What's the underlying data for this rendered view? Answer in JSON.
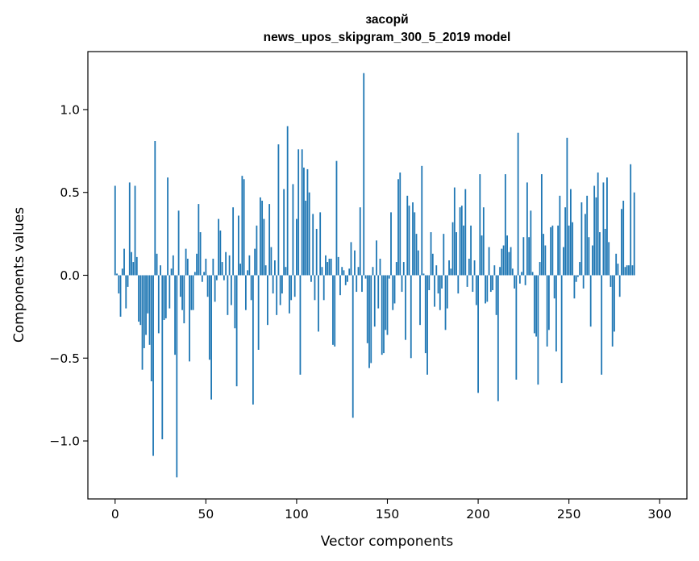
{
  "chart_data": {
    "type": "bar",
    "title": "засорй",
    "subtitle": "news_upos_skipgram_300_5_2019 model",
    "xlabel": "Vector components",
    "ylabel": "Components values",
    "xlim": [
      -15,
      315
    ],
    "ylim": [
      -1.35,
      1.35
    ],
    "xticks": [
      0,
      50,
      100,
      150,
      200,
      250,
      300
    ],
    "xtick_labels": [
      "0",
      "50",
      "100",
      "150",
      "200",
      "250",
      "300"
    ],
    "yticks": [
      1.0,
      0.5,
      0.0,
      -0.5,
      -1.0
    ],
    "ytick_labels": [
      "1.0",
      "0.5",
      "0.0",
      "−0.5",
      "−1.0"
    ],
    "bar_color": "#1f77b4",
    "values": [
      0.54,
      0.01,
      -0.11,
      -0.25,
      0.04,
      0.16,
      -0.2,
      -0.07,
      0.56,
      0.14,
      0.08,
      0.54,
      0.11,
      -0.28,
      -0.3,
      -0.57,
      -0.44,
      -0.36,
      -0.23,
      -0.42,
      -0.64,
      -1.09,
      0.81,
      0.13,
      -0.35,
      0.06,
      -0.99,
      -0.27,
      -0.26,
      0.59,
      -0.2,
      0.04,
      0.12,
      -0.48,
      -1.22,
      0.39,
      -0.13,
      -0.21,
      -0.29,
      0.16,
      0.1,
      -0.52,
      -0.21,
      -0.21,
      0.02,
      0.13,
      0.43,
      0.26,
      -0.04,
      0.02,
      0.1,
      -0.13,
      -0.51,
      -0.75,
      0.1,
      -0.16,
      -0.03,
      0.34,
      0.27,
      0.08,
      -0.03,
      0.14,
      -0.24,
      0.12,
      -0.18,
      0.41,
      -0.32,
      -0.67,
      0.36,
      0.07,
      0.6,
      0.58,
      -0.21,
      0.03,
      0.12,
      -0.15,
      -0.78,
      0.16,
      0.3,
      -0.45,
      0.47,
      0.45,
      0.34,
      0.06,
      -0.3,
      0.43,
      0.17,
      -0.11,
      0.09,
      -0.24,
      0.79,
      -0.18,
      -0.11,
      0.52,
      0.05,
      0.9,
      -0.23,
      -0.15,
      0.55,
      -0.13,
      0.34,
      0.76,
      -0.6,
      0.76,
      0.65,
      0.45,
      0.64,
      0.5,
      -0.04,
      0.37,
      -0.15,
      0.28,
      -0.34,
      0.38,
      0.05,
      -0.15,
      0.12,
      0.08,
      0.1,
      0.1,
      -0.42,
      -0.43,
      0.69,
      0.11,
      -0.12,
      0.05,
      0.03,
      -0.06,
      -0.04,
      0.04,
      0.2,
      -0.86,
      0.15,
      -0.1,
      0.05,
      0.41,
      -0.1,
      1.22,
      -0.02,
      -0.41,
      -0.56,
      -0.53,
      0.05,
      -0.31,
      0.21,
      -0.2,
      0.1,
      -0.48,
      -0.47,
      -0.33,
      -0.36,
      -0.02,
      0.38,
      -0.21,
      -0.17,
      0.08,
      0.58,
      0.62,
      -0.1,
      0.08,
      -0.39,
      0.48,
      0.42,
      -0.5,
      0.44,
      0.38,
      0.25,
      0.15,
      -0.3,
      0.66,
      0.01,
      -0.47,
      -0.6,
      -0.09,
      0.26,
      0.13,
      -0.19,
      0.06,
      -0.11,
      -0.21,
      -0.08,
      0.25,
      -0.33,
      -0.2,
      0.09,
      0.04,
      0.32,
      0.53,
      0.26,
      -0.11,
      0.41,
      0.42,
      0.3,
      0.52,
      -0.07,
      0.1,
      0.3,
      -0.1,
      0.09,
      -0.18,
      -0.71,
      0.61,
      0.24,
      0.41,
      -0.17,
      -0.16,
      0.17,
      -0.1,
      -0.09,
      0.06,
      -0.24,
      -0.76,
      0.05,
      0.16,
      0.18,
      0.61,
      0.24,
      0.14,
      0.17,
      0.04,
      -0.08,
      -0.63,
      0.86,
      -0.05,
      0.02,
      0.23,
      -0.06,
      0.56,
      0.23,
      0.39,
      0.02,
      -0.35,
      -0.37,
      -0.66,
      0.08,
      0.61,
      0.25,
      0.18,
      -0.43,
      -0.33,
      0.29,
      0.3,
      -0.14,
      -0.46,
      0.3,
      0.48,
      -0.65,
      0.17,
      0.41,
      0.83,
      0.3,
      0.52,
      0.32,
      -0.14,
      -0.04,
      -0.01,
      0.08,
      0.44,
      -0.08,
      0.37,
      0.48,
      0.23,
      -0.31,
      0.18,
      0.54,
      0.47,
      0.62,
      0.26,
      -0.6,
      0.56,
      0.28,
      0.59,
      0.2,
      -0.07,
      -0.43,
      -0.34,
      0.13,
      0.07,
      -0.13,
      0.4,
      0.45,
      0.05,
      0.06,
      0.06,
      0.67,
      0.06,
      0.5
    ]
  }
}
